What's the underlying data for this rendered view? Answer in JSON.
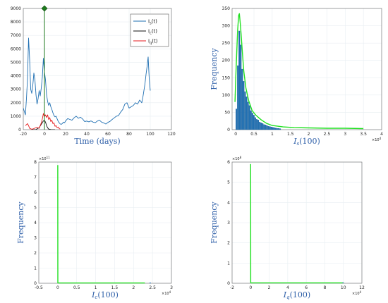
{
  "colors": {
    "blue": "#1f6fb2",
    "black": "#111111",
    "red": "#e41a1c",
    "green": "#22e022",
    "dark_green": "#1e7a1e",
    "grid": "#e8eef2",
    "label": "#2e5fa8"
  },
  "chart_data": [
    {
      "type": "line",
      "title": "",
      "xlabel": "Time (days)",
      "ylabel": "",
      "xlim": [
        -20,
        120
      ],
      "ylim": [
        0,
        9000
      ],
      "xticks": [
        "-20",
        "0",
        "20",
        "40",
        "60",
        "80",
        "100",
        "120"
      ],
      "yticks": [
        "0",
        "1000",
        "2000",
        "3000",
        "4000",
        "5000",
        "6000",
        "7000",
        "8000",
        "9000"
      ],
      "grid": true,
      "legend": {
        "position": "top-right",
        "entries": [
          {
            "base": "I",
            "sub": "s",
            "suffix": "(t)",
            "color": "blue"
          },
          {
            "base": "I",
            "sub": "c",
            "suffix": "(t)",
            "color": "black"
          },
          {
            "base": "I",
            "sub": "q",
            "suffix": "(t)",
            "color": "red"
          }
        ]
      },
      "marker": {
        "x": 0,
        "y": 9000,
        "shape": "diamond",
        "color": "dark_green"
      },
      "vline": {
        "x": 0,
        "color": "dark_green"
      },
      "series": [
        {
          "name": "Is(t)",
          "color": "blue",
          "points": [
            [
              -20,
              1600
            ],
            [
              -19,
              1350
            ],
            [
              -18,
              1100
            ],
            [
              -17,
              2300
            ],
            [
              -16,
              3800
            ],
            [
              -15,
              6800
            ],
            [
              -14,
              5200
            ],
            [
              -13,
              3000
            ],
            [
              -12,
              2700
            ],
            [
              -11,
              3300
            ],
            [
              -10,
              4200
            ],
            [
              -9,
              3700
            ],
            [
              -8,
              2600
            ],
            [
              -7,
              1900
            ],
            [
              -6,
              2300
            ],
            [
              -5,
              2900
            ],
            [
              -4,
              2500
            ],
            [
              -3,
              3100
            ],
            [
              -2,
              3900
            ],
            [
              -1,
              5300
            ],
            [
              0,
              4300
            ],
            [
              1,
              3700
            ],
            [
              2,
              2600
            ],
            [
              3,
              2100
            ],
            [
              4,
              1800
            ],
            [
              5,
              2000
            ],
            [
              6,
              1700
            ],
            [
              7,
              1500
            ],
            [
              8,
              1250
            ],
            [
              9,
              1050
            ],
            [
              10,
              950
            ],
            [
              11,
              1000
            ],
            [
              12,
              800
            ],
            [
              13,
              620
            ],
            [
              14,
              500
            ],
            [
              15,
              420
            ],
            [
              16,
              400
            ],
            [
              17,
              460
            ],
            [
              18,
              560
            ],
            [
              19,
              520
            ],
            [
              20,
              650
            ],
            [
              22,
              820
            ],
            [
              24,
              760
            ],
            [
              26,
              700
            ],
            [
              28,
              880
            ],
            [
              30,
              1000
            ],
            [
              32,
              850
            ],
            [
              34,
              920
            ],
            [
              36,
              800
            ],
            [
              38,
              600
            ],
            [
              40,
              640
            ],
            [
              42,
              580
            ],
            [
              44,
              650
            ],
            [
              46,
              560
            ],
            [
              48,
              520
            ],
            [
              50,
              640
            ],
            [
              52,
              700
            ],
            [
              54,
              560
            ],
            [
              56,
              500
            ],
            [
              58,
              420
            ],
            [
              60,
              540
            ],
            [
              62,
              620
            ],
            [
              64,
              760
            ],
            [
              66,
              880
            ],
            [
              68,
              1000
            ],
            [
              70,
              1050
            ],
            [
              72,
              1300
            ],
            [
              74,
              1500
            ],
            [
              76,
              1900
            ],
            [
              78,
              2000
            ],
            [
              80,
              1600
            ],
            [
              82,
              1700
            ],
            [
              84,
              1800
            ],
            [
              86,
              2000
            ],
            [
              88,
              1900
            ],
            [
              90,
              2200
            ],
            [
              92,
              2000
            ],
            [
              93,
              2400
            ],
            [
              94,
              2900
            ],
            [
              95,
              3400
            ],
            [
              96,
              4100
            ],
            [
              97,
              4700
            ],
            [
              98,
              5400
            ],
            [
              99,
              3800
            ],
            [
              100,
              2900
            ]
          ]
        },
        {
          "name": "Ic(t)",
          "color": "black",
          "points": [
            [
              -12,
              0
            ],
            [
              -8,
              10
            ],
            [
              -5,
              150
            ],
            [
              -3,
              400
            ],
            [
              -1,
              650
            ],
            [
              0,
              700
            ],
            [
              1,
              560
            ],
            [
              2,
              300
            ],
            [
              3,
              140
            ],
            [
              4,
              40
            ],
            [
              6,
              10
            ],
            [
              10,
              0
            ]
          ]
        },
        {
          "name": "Iq(t)",
          "color": "red",
          "points": [
            [
              -18,
              300
            ],
            [
              -16,
              450
            ],
            [
              -15,
              300
            ],
            [
              -14,
              100
            ],
            [
              -12,
              30
            ],
            [
              -10,
              80
            ],
            [
              -8,
              150
            ],
            [
              -7,
              180
            ],
            [
              -5,
              100
            ],
            [
              -3,
              500
            ],
            [
              -2,
              800
            ],
            [
              -1,
              1200
            ],
            [
              0,
              950
            ],
            [
              1,
              1100
            ],
            [
              2,
              900
            ],
            [
              3,
              1100
            ],
            [
              4,
              750
            ],
            [
              5,
              900
            ],
            [
              6,
              600
            ],
            [
              7,
              700
            ],
            [
              8,
              450
            ],
            [
              9,
              500
            ],
            [
              10,
              250
            ],
            [
              11,
              300
            ],
            [
              12,
              150
            ],
            [
              13,
              200
            ],
            [
              14,
              80
            ],
            [
              15,
              40
            ]
          ]
        }
      ]
    },
    {
      "type": "bar",
      "title": "",
      "xlabel": "Is(100)",
      "ylabel": "Frequency",
      "xlim": [
        -0.1,
        4
      ],
      "ylim": [
        0,
        350
      ],
      "x_exponent": "4",
      "xticks": [
        "0",
        "0.5",
        "1",
        "1.5",
        "2",
        "2.5",
        "3",
        "3.5",
        "4"
      ],
      "yticks": [
        "0",
        "50",
        "100",
        "150",
        "200",
        "250",
        "300",
        "350"
      ],
      "grid": true,
      "bar_width": 0.04,
      "bars": {
        "x": [
          0.0,
          0.04,
          0.08,
          0.12,
          0.16,
          0.2,
          0.24,
          0.28,
          0.32,
          0.36,
          0.4,
          0.44,
          0.48,
          0.52,
          0.56,
          0.6,
          0.64,
          0.68,
          0.72,
          0.76,
          0.8,
          0.84,
          0.88,
          0.92,
          0.96,
          1.0,
          1.04,
          1.08,
          1.12,
          1.16,
          1.2
        ],
        "values": [
          60,
          185,
          285,
          245,
          175,
          140,
          110,
          95,
          80,
          70,
          55,
          48,
          42,
          35,
          30,
          28,
          22,
          20,
          18,
          15,
          14,
          12,
          10,
          9,
          8,
          7,
          6,
          5,
          4,
          4,
          3
        ],
        "color": "blue"
      },
      "curve": {
        "color": "green",
        "x": [
          -0.02,
          0.0,
          0.05,
          0.08,
          0.1,
          0.13,
          0.17,
          0.22,
          0.28,
          0.35,
          0.45,
          0.55,
          0.7,
          0.85,
          1.0,
          1.3,
          1.6,
          2.0,
          2.5,
          3.0,
          3.5
        ],
        "y": [
          80,
          150,
          285,
          330,
          335,
          300,
          240,
          170,
          120,
          85,
          55,
          42,
          28,
          18,
          12,
          8,
          6,
          5,
          4,
          4,
          3
        ]
      }
    },
    {
      "type": "line",
      "title": "",
      "xlabel": "Ic(100)",
      "ylabel": "Frequency",
      "xlim": [
        -0.5,
        3
      ],
      "ylim": [
        0,
        8
      ],
      "x_exponent": "4",
      "y_exponent": "11",
      "xticks": [
        "-0.5",
        "0",
        "0.5",
        "1",
        "1.5",
        "2",
        "2.5",
        "3"
      ],
      "yticks": [
        "0",
        "1",
        "2",
        "3",
        "4",
        "5",
        "6",
        "7",
        "8"
      ],
      "grid": true,
      "series": [
        {
          "color": "green",
          "points": [
            [
              0,
              7.8
            ],
            [
              0.002,
              0.02
            ],
            [
              2.3,
              0.02
            ]
          ]
        },
        {
          "color": "blue",
          "points": [
            [
              2.42,
              0.02
            ],
            [
              2.46,
              0.02
            ]
          ]
        }
      ]
    },
    {
      "type": "line",
      "title": "",
      "xlabel": "Iq(100)",
      "ylabel": "Frequency",
      "xlim": [
        -2,
        12
      ],
      "ylim": [
        0,
        6
      ],
      "x_exponent": "4",
      "y_exponent": "8",
      "xticks": [
        "-2",
        "0",
        "2",
        "4",
        "6",
        "8",
        "10",
        "12"
      ],
      "yticks": [
        "0",
        "1",
        "2",
        "3",
        "4",
        "5",
        "6"
      ],
      "grid": true,
      "series": [
        {
          "color": "green",
          "points": [
            [
              0,
              5.9
            ],
            [
              0.01,
              0.02
            ],
            [
              10,
              0.02
            ]
          ]
        },
        {
          "color": "blue",
          "points": [
            [
              9.9,
              0.02
            ],
            [
              10.05,
              0.02
            ]
          ]
        }
      ]
    }
  ]
}
